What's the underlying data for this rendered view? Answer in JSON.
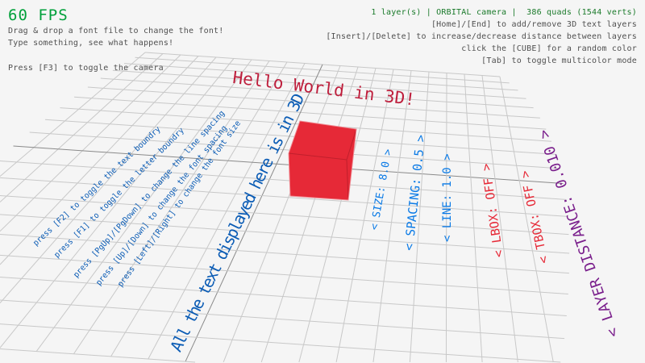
{
  "hud": {
    "fps": "60 FPS",
    "left_lines": [
      "Drag & drop a font file to change the font!",
      "Type something, see what happens!",
      "Press [F3] to toggle the camera"
    ],
    "status": "1 layer(s) | ORBITAL camera |  386 quads (1544 verts)",
    "right_lines": [
      "[Home]/[End] to add/remove 3D text layers",
      "[Insert]/[Delete] to increase/decrease distance between layers",
      "click the [CUBE] for a random color",
      "[Tab] to toggle multicolor mode"
    ]
  },
  "scene": {
    "hello": "Hello World in 3D!",
    "big_text": "All the text displayed here is in 3D",
    "help_lines": [
      "press [Left]/[Right] to change the font size",
      "press [Up]/[Down] to change the font spacing",
      "press [PgUp]/[PgDown] to change the line spacing",
      "press [F1] to toggle the letter boundry",
      "press [F2] to toggle the text boundry"
    ],
    "labels": {
      "size": "< SIZE: 8.0 >",
      "spacing": "< SPACING: 0.5 >",
      "line": "< LINE: 1.0 >",
      "lbox": "< LBOX: OFF >",
      "tbox": "< TBOX: OFF >",
      "layer_distance": "< LAYER DISTANCE: 0.010 >"
    }
  },
  "colors": {
    "background": "#f5f5f5",
    "fps": "#00a03a",
    "status": "#1a7a2a",
    "hello": "#be1e3c",
    "cube": "#e62937",
    "blue": "#0b5cb5",
    "skyblue": "#0a7ae6",
    "red": "#e62937",
    "purple": "#7a1f8c",
    "grid": "#c8c8c8"
  }
}
